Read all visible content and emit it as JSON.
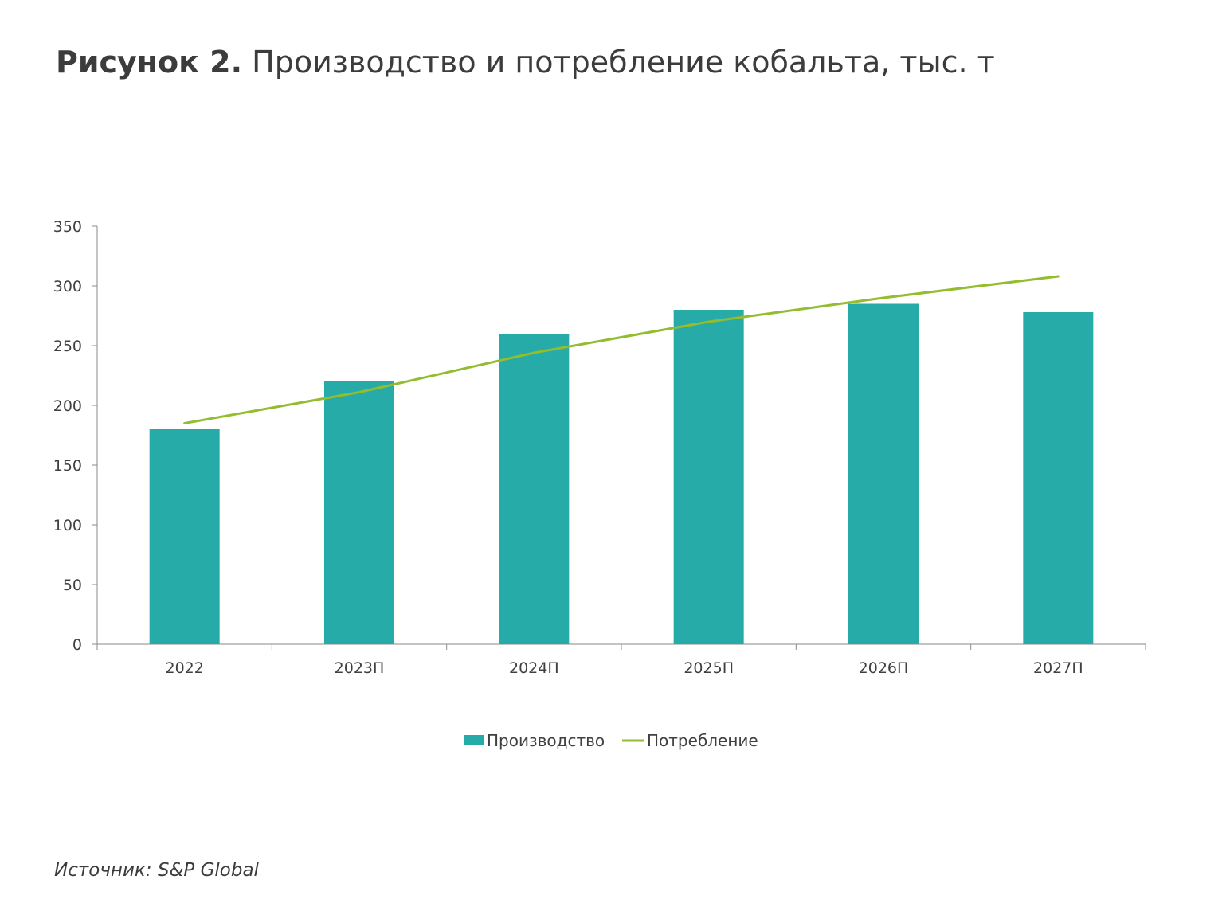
{
  "title": {
    "bold": "Рисунок 2.",
    "rest": "Производство и потребление кобальта, тыс. т"
  },
  "source": {
    "label": "Источник:",
    "value": "S&P Global"
  },
  "colors": {
    "bar": "#27aba8",
    "line": "#93bc2e",
    "axis": "#8a8a8a",
    "text": "#404040"
  },
  "chart_data": {
    "type": "bar",
    "categories": [
      "2022",
      "2023П",
      "2024П",
      "2025П",
      "2026П",
      "2027П"
    ],
    "series": [
      {
        "name": "Производство",
        "type": "bar",
        "values": [
          180,
          220,
          260,
          280,
          285,
          278
        ]
      },
      {
        "name": "Потребление",
        "type": "line",
        "values": [
          185,
          211,
          244,
          270,
          290,
          308
        ]
      }
    ],
    "ylim": [
      0,
      350
    ],
    "yticks": [
      0,
      50,
      100,
      150,
      200,
      250,
      300,
      350
    ],
    "grid": false,
    "legend": "bottom",
    "title": "Производство и потребление кобальта, тыс. т"
  }
}
